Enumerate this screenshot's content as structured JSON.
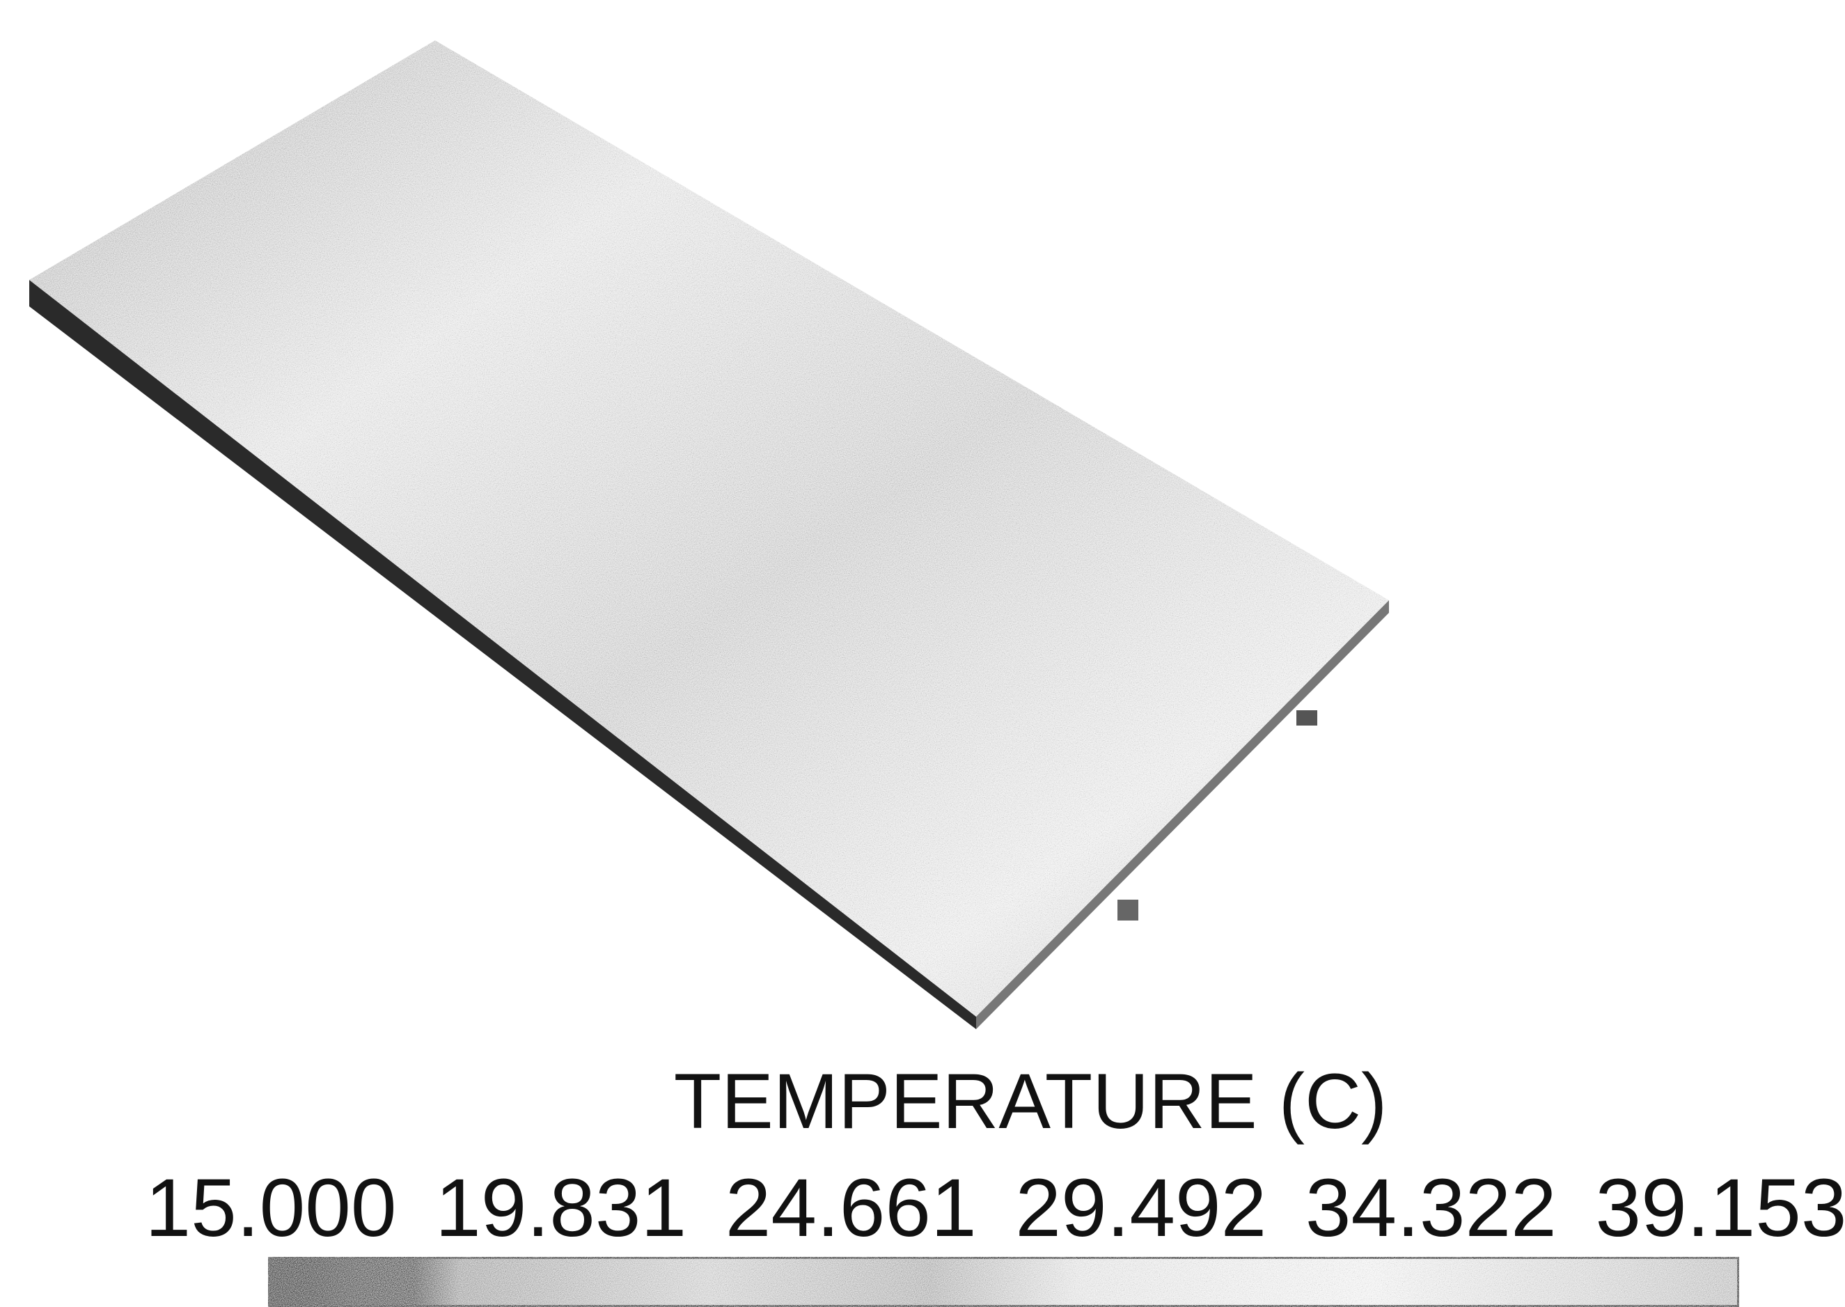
{
  "chart_data": {
    "type": "colorbar",
    "title": "TEMPERATURE (C)",
    "xlim": [
      15,
      39.153
    ],
    "xticks": [
      {
        "value": 15,
        "label": "15.000"
      },
      {
        "value": 19.831,
        "label": "19.831"
      },
      {
        "value": 24.661,
        "label": "24.661"
      },
      {
        "value": 29.492,
        "label": "29.492"
      },
      {
        "value": 34.322,
        "label": "34.322"
      },
      {
        "value": 39.153,
        "label": "39.153"
      }
    ]
  }
}
